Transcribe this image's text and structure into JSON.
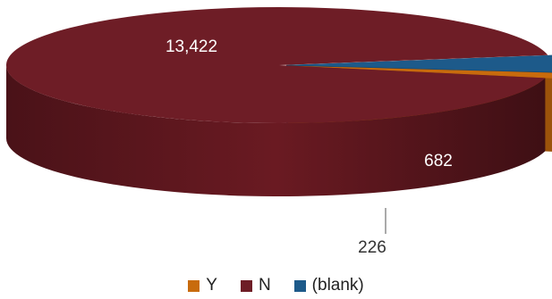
{
  "chart_data": {
    "type": "pie",
    "style": "3d-exploded",
    "categories": [
      "Y",
      "N",
      "(blank)"
    ],
    "values": [
      226,
      13422,
      682
    ],
    "data_labels": [
      "226",
      "13,422",
      "682"
    ],
    "colors": {
      "Y": "#c86b0d",
      "N": "#6e1d26",
      "(blank)": "#1d5a8a"
    },
    "legend": {
      "position": "bottom",
      "items": [
        "Y",
        "N",
        "(blank)"
      ]
    }
  }
}
